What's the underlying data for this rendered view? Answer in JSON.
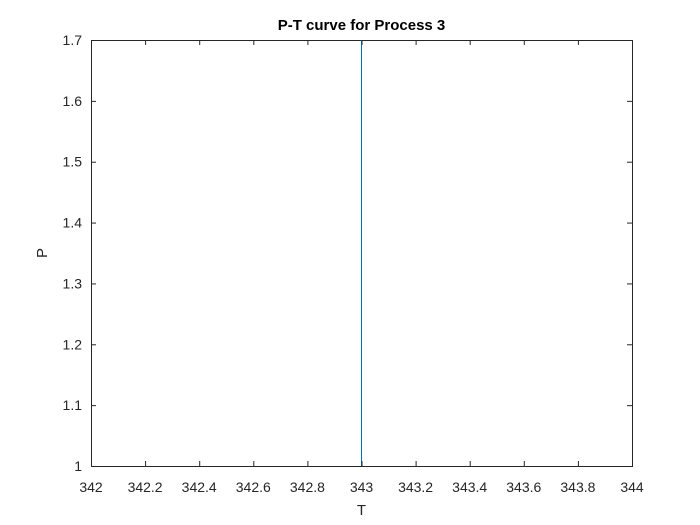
{
  "chart_data": {
    "type": "line",
    "title": "P-T curve for Process 3",
    "xlabel": "T",
    "ylabel": "P",
    "xlim": [
      342,
      344
    ],
    "ylim": [
      1,
      1.7
    ],
    "xticks": [
      342,
      342.2,
      342.4,
      342.6,
      342.8,
      343,
      343.2,
      343.4,
      343.6,
      343.8,
      344
    ],
    "xtick_labels": [
      "342",
      "342.2",
      "342.4",
      "342.6",
      "342.8",
      "343",
      "343.2",
      "343.4",
      "343.6",
      "343.8",
      "344"
    ],
    "yticks": [
      1,
      1.1,
      1.2,
      1.3,
      1.4,
      1.5,
      1.6,
      1.7
    ],
    "ytick_labels": [
      "1",
      "1.1",
      "1.2",
      "1.3",
      "1.4",
      "1.5",
      "1.6",
      "1.7"
    ],
    "grid": false,
    "legend": "none",
    "series": [
      {
        "x": [
          343,
          343
        ],
        "y": [
          1,
          1.7
        ],
        "color": "#0072BD"
      }
    ]
  }
}
